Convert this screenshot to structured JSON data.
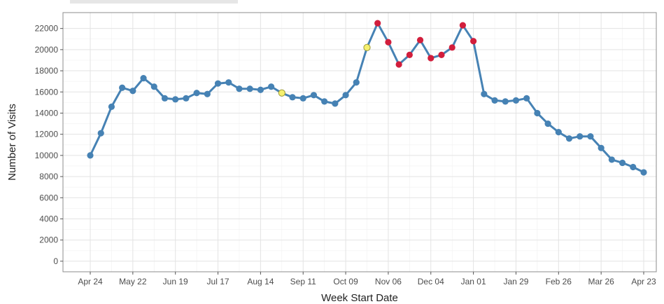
{
  "chart_data": {
    "type": "line",
    "title": "",
    "xlabel": "Week Start Date",
    "ylabel": "Number of Visits",
    "ylim": [
      -1000,
      23500
    ],
    "y_ticks": [
      0,
      2000,
      4000,
      6000,
      8000,
      10000,
      12000,
      14000,
      16000,
      18000,
      20000,
      22000
    ],
    "x_tick_labels": [
      "Apr 24",
      "May 22",
      "Jun 19",
      "Jul 17",
      "Aug 14",
      "Sep 11",
      "Oct 09",
      "Nov 06",
      "Dec 04",
      "Jan 01",
      "Jan 29",
      "Feb 26",
      "Mar 26",
      "Apr 23"
    ],
    "x_tick_weeks": [
      0,
      4,
      8,
      12,
      16,
      20,
      24,
      28,
      32,
      36,
      40,
      44,
      48,
      52
    ],
    "grid": true,
    "line_color": "#4682b4",
    "series": [
      {
        "values": [
          10000,
          12100,
          14600,
          16400,
          16100,
          17300,
          16500,
          15400,
          15300,
          15400,
          15900,
          15800,
          16800,
          16900,
          16300,
          16300,
          16200,
          16500,
          15900,
          15500,
          15400,
          15700,
          15100,
          14900,
          15700,
          16900,
          20200,
          22500,
          20700,
          18600,
          19500,
          20900,
          19200,
          19500,
          20200,
          22300,
          20800,
          15800,
          15200,
          15100,
          15200,
          15400,
          14000,
          13000,
          12200,
          11600,
          11800,
          11800,
          10700,
          9600,
          9300,
          8900,
          8400
        ],
        "point_colors": [
          "#4682b4",
          "#4682b4",
          "#4682b4",
          "#4682b4",
          "#4682b4",
          "#4682b4",
          "#4682b4",
          "#4682b4",
          "#4682b4",
          "#4682b4",
          "#4682b4",
          "#4682b4",
          "#4682b4",
          "#4682b4",
          "#4682b4",
          "#4682b4",
          "#4682b4",
          "#4682b4",
          "#f5f06e",
          "#4682b4",
          "#4682b4",
          "#4682b4",
          "#4682b4",
          "#4682b4",
          "#4682b4",
          "#4682b4",
          "#f5f06e",
          "#d21e3c",
          "#d21e3c",
          "#d21e3c",
          "#d21e3c",
          "#d21e3c",
          "#d21e3c",
          "#d21e3c",
          "#d21e3c",
          "#d21e3c",
          "#d21e3c",
          "#4682b4",
          "#4682b4",
          "#4682b4",
          "#4682b4",
          "#4682b4",
          "#4682b4",
          "#4682b4",
          "#4682b4",
          "#4682b4",
          "#4682b4",
          "#4682b4",
          "#4682b4",
          "#4682b4",
          "#4682b4",
          "#4682b4",
          "#4682b4"
        ]
      }
    ]
  }
}
